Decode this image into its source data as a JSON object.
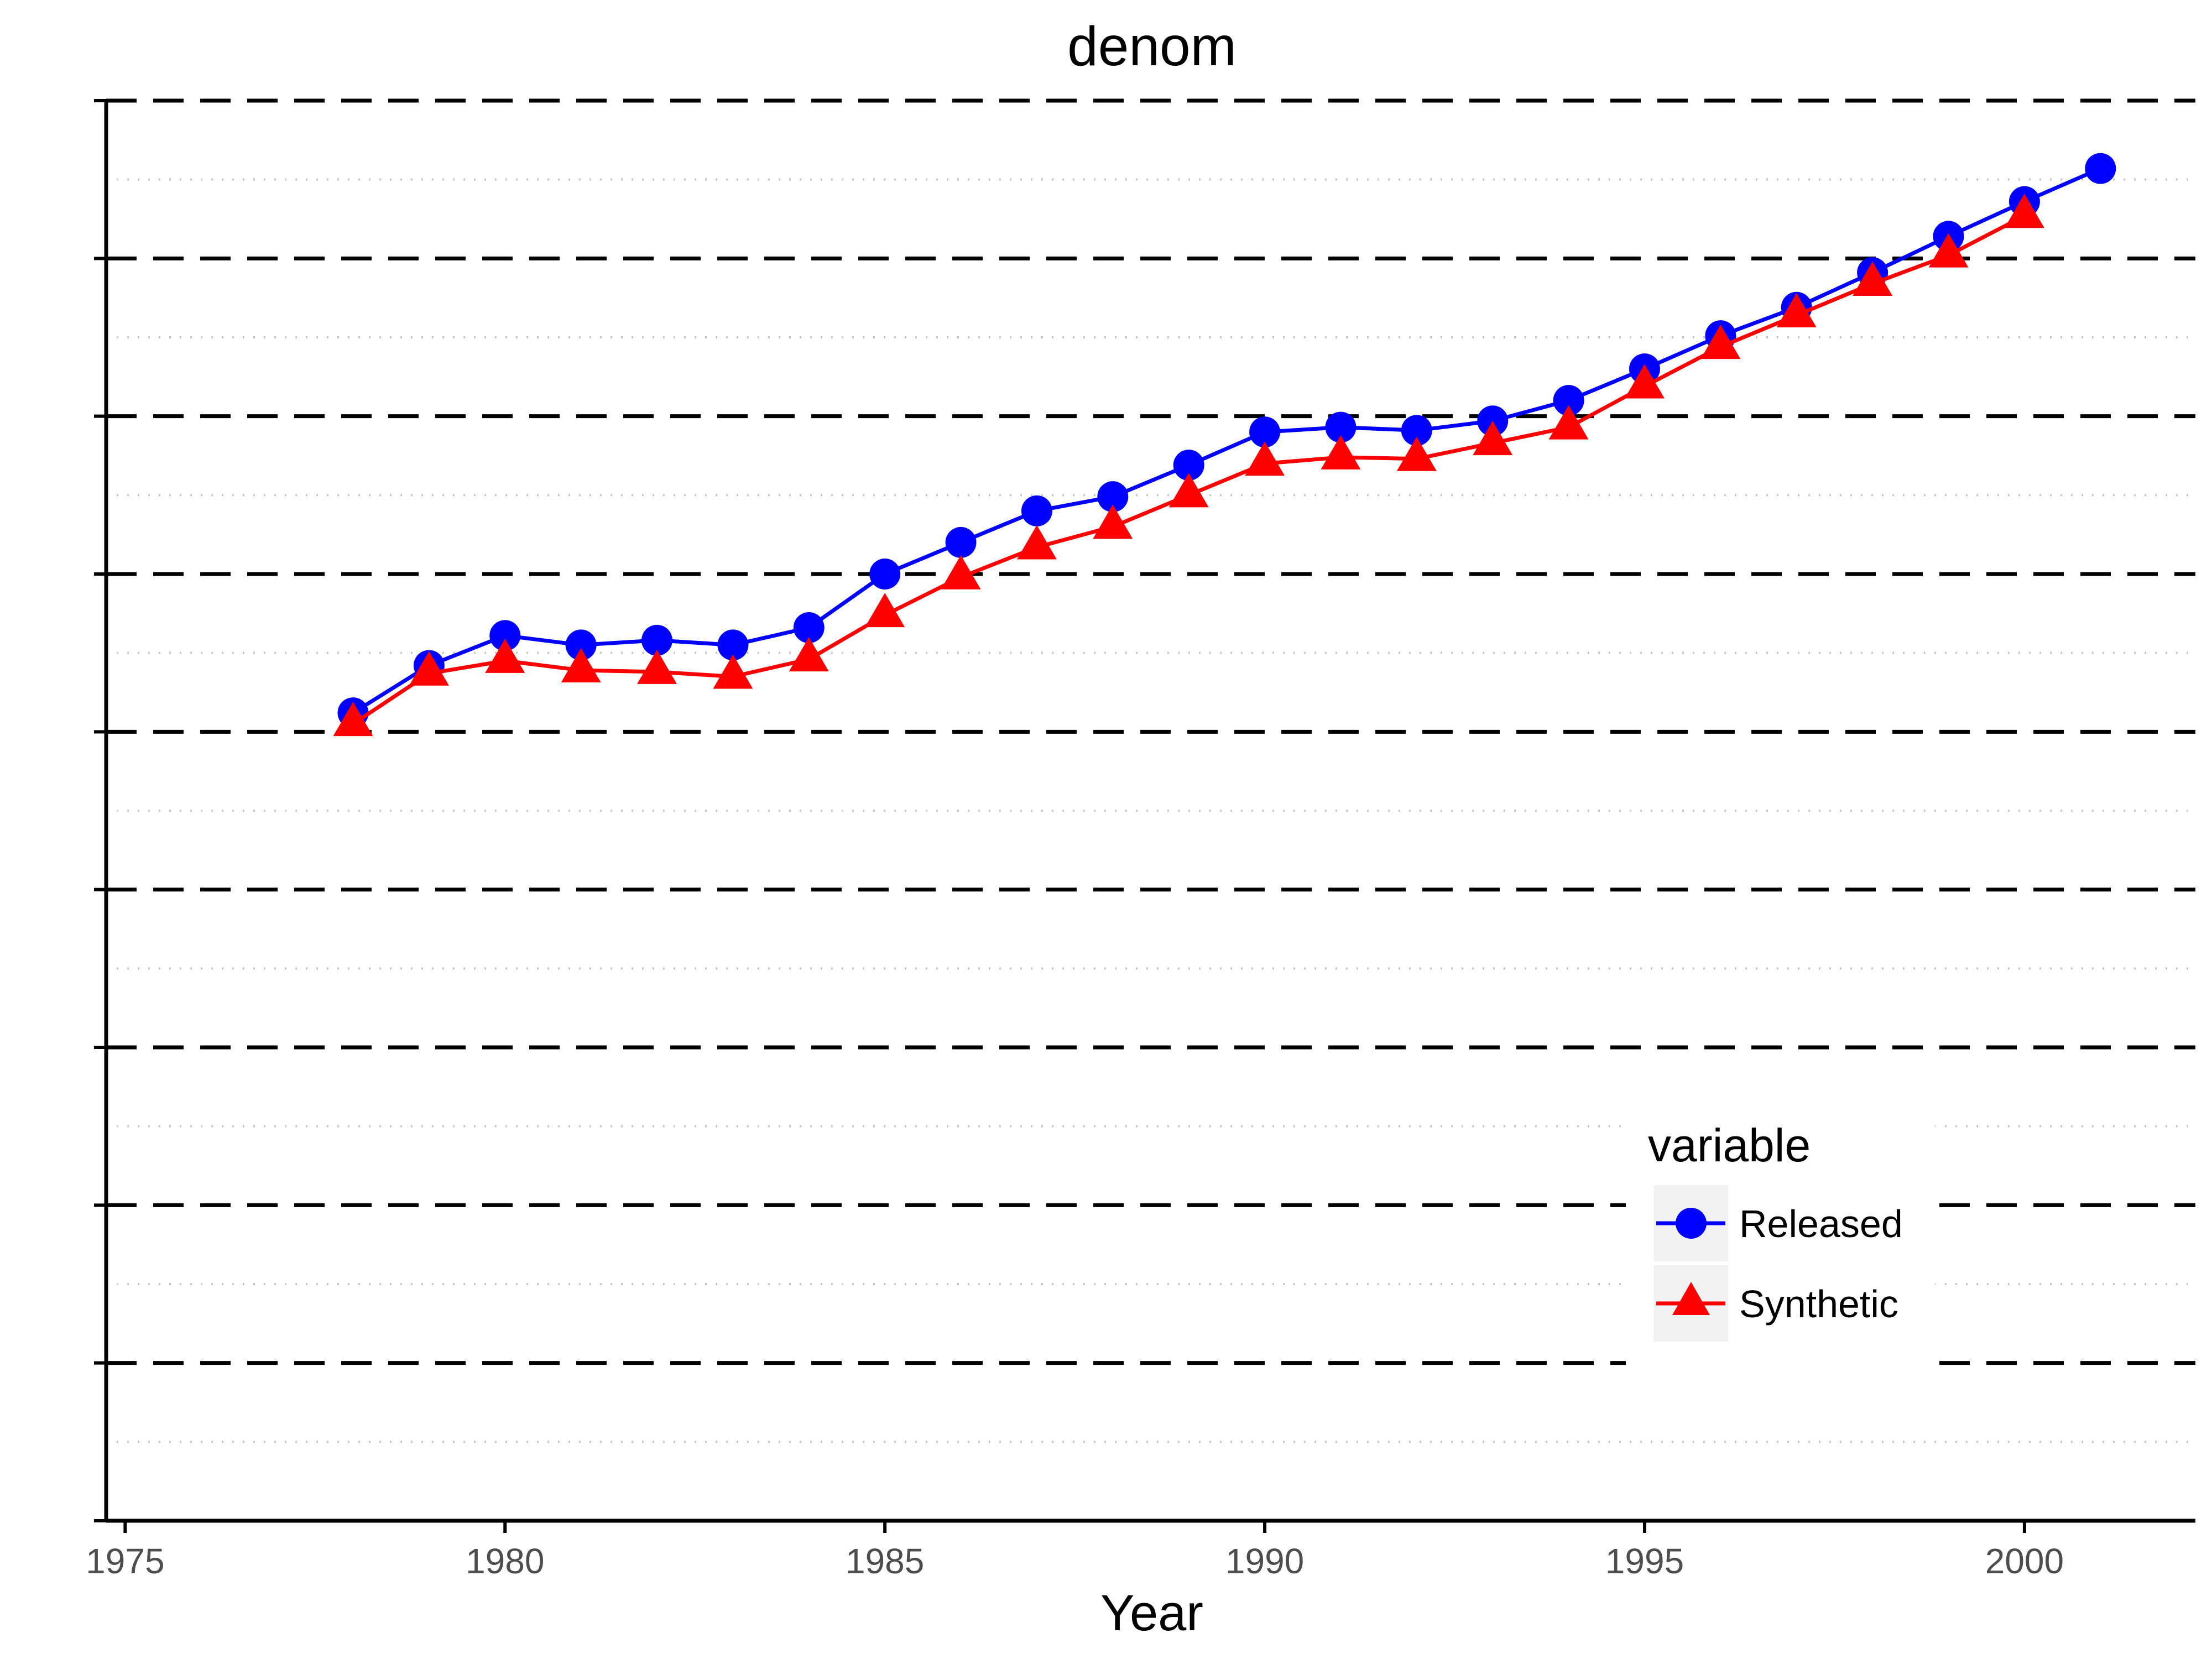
{
  "chart_data": {
    "type": "line",
    "title": "denom",
    "xlabel": "Year",
    "ylabel": "",
    "xlim": [
      1974.75,
      2002.25
    ],
    "ylim": [
      0,
      9
    ],
    "x_ticks": [
      1975,
      1980,
      1985,
      1990,
      1995,
      2000
    ],
    "y_major_grid": [
      1,
      2,
      3,
      4,
      5,
      6,
      7,
      8,
      9
    ],
    "y_minor_grid": [
      0.5,
      1.5,
      2.5,
      3.5,
      4.5,
      5.5,
      6.5,
      7.5,
      8.5
    ],
    "grid": true,
    "y_tick_labels_shown": false,
    "legend_position": "bottom-right",
    "legend_title": "variable",
    "series": [
      {
        "name": "Released",
        "color": "#0000ff",
        "marker": "circle",
        "x": [
          1978,
          1979,
          1980,
          1981,
          1982,
          1983,
          1984,
          1985,
          1986,
          1987,
          1988,
          1989,
          1990,
          1991,
          1992,
          1993,
          1994,
          1995,
          1996,
          1997,
          1998,
          1999,
          2000,
          2001
        ],
        "y": [
          5.12,
          5.42,
          5.61,
          5.55,
          5.58,
          5.55,
          5.66,
          6.0,
          6.2,
          6.4,
          6.49,
          6.69,
          6.9,
          6.93,
          6.91,
          6.97,
          7.1,
          7.3,
          7.51,
          7.69,
          7.91,
          8.14,
          8.36,
          8.57
        ]
      },
      {
        "name": "Synthetic",
        "color": "#ff0000",
        "marker": "triangle",
        "x": [
          1978,
          1979,
          1980,
          1981,
          1982,
          1983,
          1984,
          1985,
          1986,
          1987,
          1988,
          1989,
          1990,
          1991,
          1992,
          1993,
          1994,
          1995,
          1996,
          1997,
          1998,
          1999,
          2000
        ],
        "y": [
          5.05,
          5.37,
          5.45,
          5.39,
          5.38,
          5.35,
          5.46,
          5.74,
          5.98,
          6.17,
          6.3,
          6.5,
          6.7,
          6.74,
          6.73,
          6.83,
          6.93,
          7.19,
          7.44,
          7.64,
          7.84,
          8.02,
          8.27
        ]
      }
    ]
  }
}
